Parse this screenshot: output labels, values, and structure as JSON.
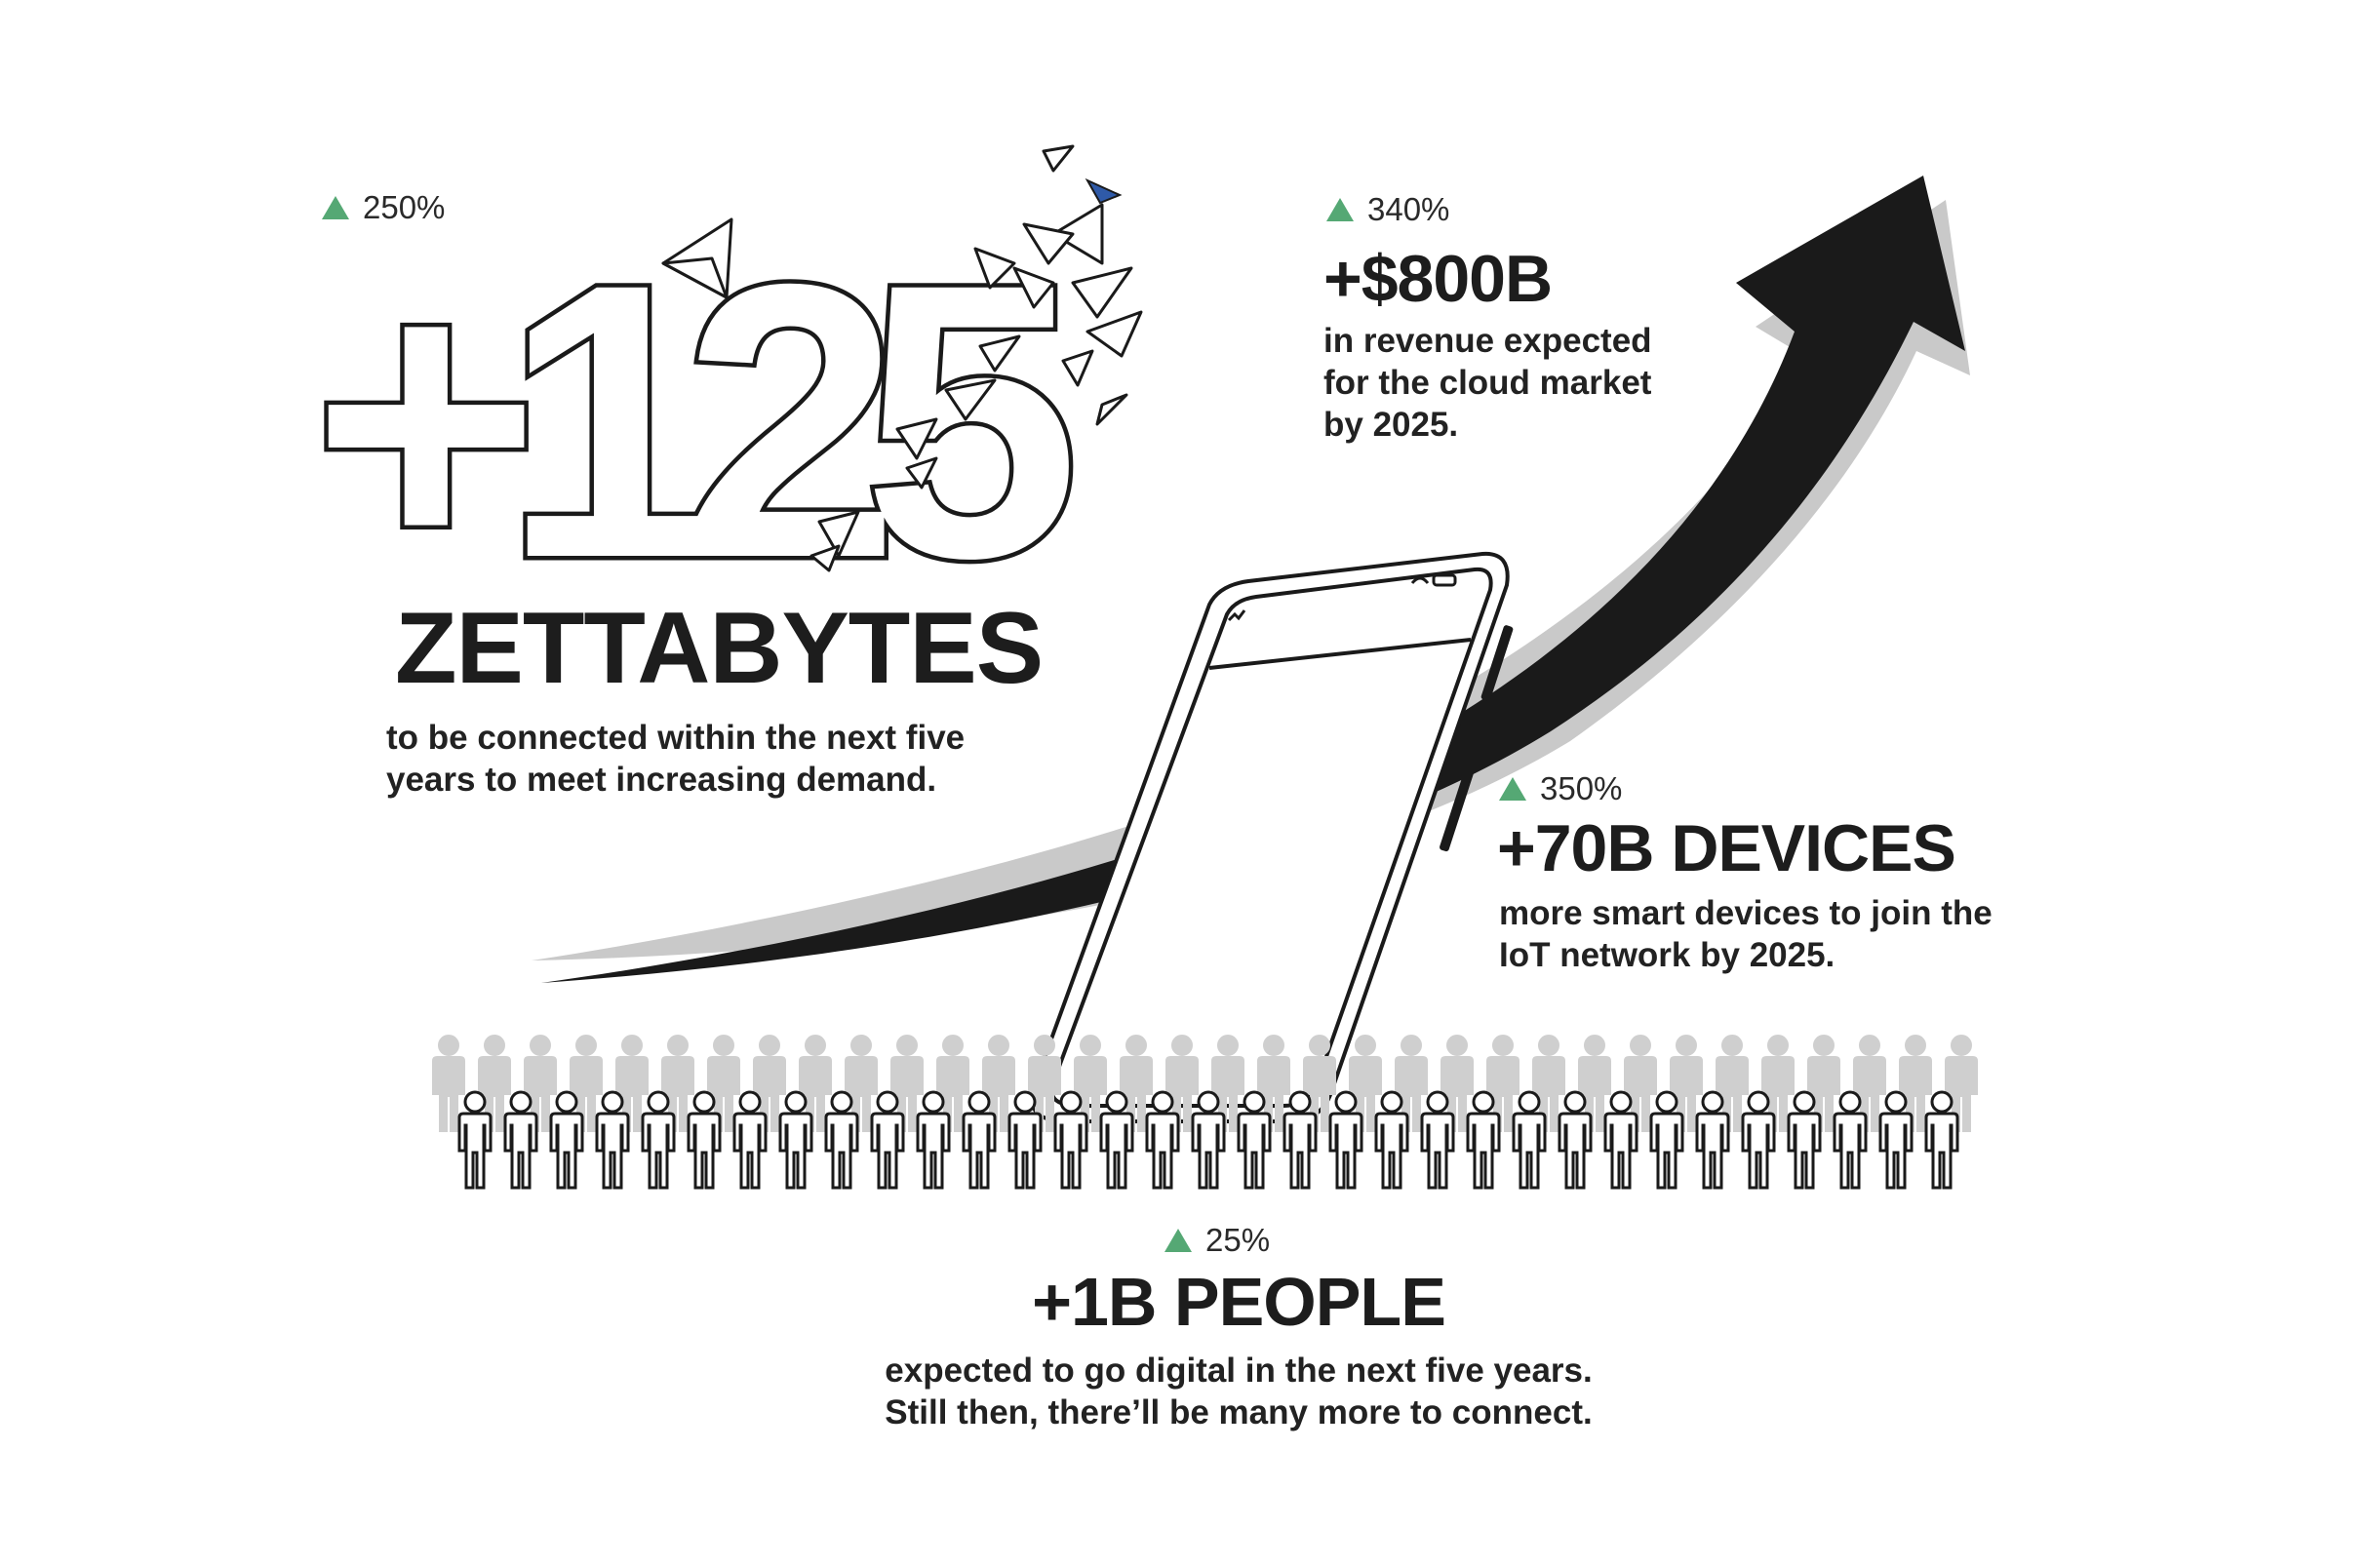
{
  "zettabytes": {
    "pct": "250%",
    "value": "+125",
    "unit": "ZETTABYTES",
    "desc_line1": "to be connected within the next five",
    "desc_line2": "years to meet increasing demand."
  },
  "revenue": {
    "pct": "340%",
    "value": "+$800B",
    "desc_line1": "in revenue expected",
    "desc_line2": "for the cloud market",
    "desc_line3": "by 2025."
  },
  "devices": {
    "pct": "350%",
    "value": "+70B DEVICES",
    "desc_line1": "more smart devices to join the",
    "desc_line2": "IoT network by 2025."
  },
  "people": {
    "pct": "25%",
    "value": "+1B PEOPLE",
    "desc_line1": "expected to go digital in the next five years.",
    "desc_line2": "Still then, there’ll be many more to connect."
  },
  "icons": [
    "up-triangle-icon",
    "growth-arrow-icon",
    "smartphone-icon",
    "person-icon",
    "paper-plane-icon"
  ],
  "colors": {
    "up_indicator": "#55a874",
    "text": "#1d1d1d",
    "arrow": "#1a1a1a",
    "shadow": "#c8c8c8",
    "accent_plane": "#2f5aa8"
  }
}
